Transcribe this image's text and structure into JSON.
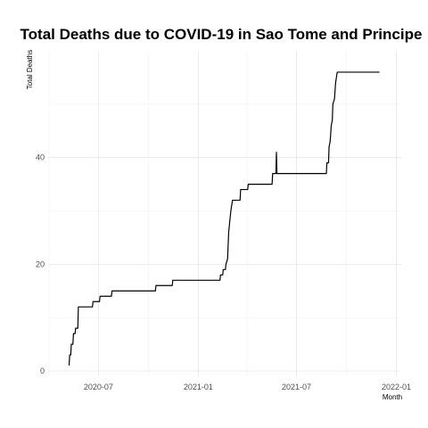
{
  "chart_data": {
    "type": "line",
    "title": "Total Deaths due to COVID-19 in Sao Tome and Principe",
    "xlabel": "Month",
    "ylabel": "Total Deaths",
    "x_type": "date",
    "xlim": [
      "2020-04-01",
      "2022-01-10"
    ],
    "ylim": [
      -1,
      60
    ],
    "x_ticks": [
      {
        "date": "2020-07-01",
        "label": "2020-07"
      },
      {
        "date": "2021-01-01",
        "label": "2021-01"
      },
      {
        "date": "2021-07-01",
        "label": "2021-07"
      },
      {
        "date": "2022-01-01",
        "label": "2022-01"
      }
    ],
    "x_minor_ticks": [
      "2020-04-01",
      "2020-10-01",
      "2021-04-01",
      "2021-10-01"
    ],
    "y_ticks": [
      0,
      20,
      40
    ],
    "y_minor_ticks": [
      10,
      30,
      50
    ],
    "grid": true,
    "series": [
      {
        "color": "#000000",
        "points": [
          [
            "2020-05-08",
            1
          ],
          [
            "2020-05-09",
            3
          ],
          [
            "2020-05-11",
            3
          ],
          [
            "2020-05-12",
            5
          ],
          [
            "2020-05-15",
            5
          ],
          [
            "2020-05-16",
            7
          ],
          [
            "2020-05-19",
            7
          ],
          [
            "2020-05-20",
            8
          ],
          [
            "2020-05-24",
            8
          ],
          [
            "2020-05-25",
            12
          ],
          [
            "2020-06-20",
            12
          ],
          [
            "2020-06-21",
            13
          ],
          [
            "2020-07-03",
            13
          ],
          [
            "2020-07-04",
            14
          ],
          [
            "2020-07-25",
            14
          ],
          [
            "2020-07-26",
            15
          ],
          [
            "2020-10-14",
            15
          ],
          [
            "2020-10-15",
            16
          ],
          [
            "2020-11-14",
            16
          ],
          [
            "2020-11-15",
            17
          ],
          [
            "2021-02-10",
            17
          ],
          [
            "2021-02-11",
            18
          ],
          [
            "2021-02-15",
            18
          ],
          [
            "2021-02-16",
            19
          ],
          [
            "2021-02-20",
            19
          ],
          [
            "2021-02-21",
            20
          ],
          [
            "2021-02-24",
            21
          ],
          [
            "2021-02-26",
            26
          ],
          [
            "2021-02-28",
            28
          ],
          [
            "2021-03-02",
            30
          ],
          [
            "2021-03-05",
            32
          ],
          [
            "2021-03-19",
            32
          ],
          [
            "2021-03-20",
            34
          ],
          [
            "2021-04-02",
            34
          ],
          [
            "2021-04-03",
            35
          ],
          [
            "2021-05-17",
            35
          ],
          [
            "2021-05-18",
            37
          ],
          [
            "2021-05-24",
            37
          ],
          [
            "2021-05-25",
            41
          ],
          [
            "2021-05-26",
            37
          ],
          [
            "2021-08-25",
            37
          ],
          [
            "2021-08-26",
            39
          ],
          [
            "2021-08-29",
            39
          ],
          [
            "2021-08-30",
            42
          ],
          [
            "2021-09-01",
            43
          ],
          [
            "2021-09-03",
            46
          ],
          [
            "2021-09-05",
            47
          ],
          [
            "2021-09-06",
            50
          ],
          [
            "2021-09-09",
            51
          ],
          [
            "2021-09-11",
            54
          ],
          [
            "2021-09-14",
            56
          ],
          [
            "2021-12-01",
            56
          ]
        ]
      }
    ]
  }
}
